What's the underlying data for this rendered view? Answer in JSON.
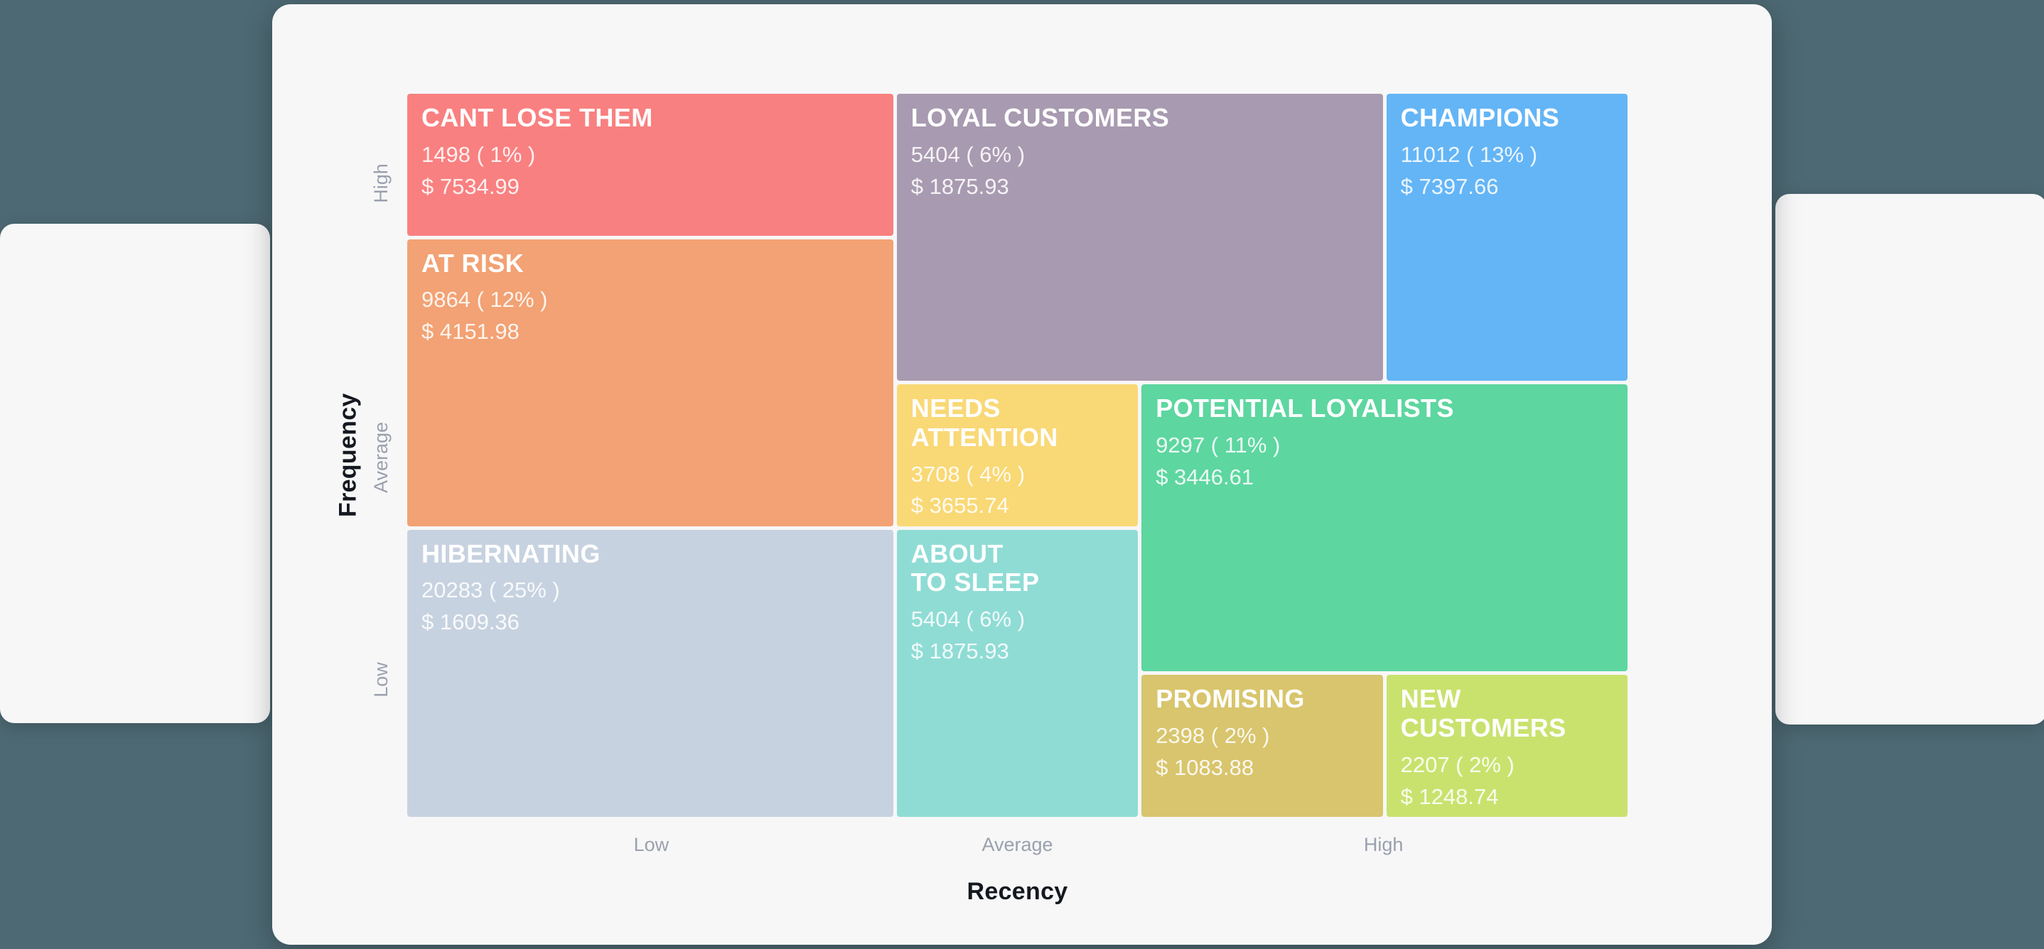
{
  "background_color": "#4d6973",
  "card_color": "#f7f7f8",
  "chart_data": {
    "type": "treemap",
    "subtype": "rfm-segment-grid",
    "title": "",
    "xlabel": "Recency",
    "ylabel": "Frequency",
    "x_ticks": [
      "Low",
      "Average",
      "High"
    ],
    "y_ticks": [
      "High",
      "Average",
      "Low"
    ],
    "grid": "5x5 units, gaps between segments, no axes lines",
    "segments": [
      {
        "name": "CANT LOSE THEM",
        "display_name": "CANT LOSE THEM",
        "customers": 1498,
        "percent": 1,
        "monetary": 7534.99,
        "count_label": "1498 ( 1% )",
        "monetary_label": "$ 7534.99",
        "color": "#f98080",
        "recency": "Low",
        "frequency": "High"
      },
      {
        "name": "LOYAL CUSTOMERS",
        "display_name": "LOYAL CUSTOMERS",
        "customers": 5404,
        "percent": 6,
        "monetary": 1875.93,
        "count_label": "5404 ( 6% )",
        "monetary_label": "$ 1875.93",
        "color": "#a89ab0",
        "recency": "Average",
        "frequency": "High"
      },
      {
        "name": "CHAMPIONS",
        "display_name": "CHAMPIONS",
        "customers": 11012,
        "percent": 13,
        "monetary": 7397.66,
        "count_label": "11012 ( 13% )",
        "monetary_label": "$ 7397.66",
        "color": "#64b5f6",
        "recency": "High",
        "frequency": "High"
      },
      {
        "name": "AT RISK",
        "display_name": "AT RISK",
        "customers": 9864,
        "percent": 12,
        "monetary": 4151.98,
        "count_label": "9864 ( 12% )",
        "monetary_label": "$ 4151.98",
        "color": "#f2a274",
        "recency": "Low",
        "frequency": "Average"
      },
      {
        "name": "NEEDS ATTENTION",
        "display_name": "NEEDS\nATTENTION",
        "customers": 3708,
        "percent": 4,
        "monetary": 3655.74,
        "count_label": "3708 ( 4% )",
        "monetary_label": "$ 3655.74",
        "color": "#f9d876",
        "recency": "Average",
        "frequency": "Average"
      },
      {
        "name": "POTENTIAL LOYALISTS",
        "display_name": "POTENTIAL LOYALISTS",
        "customers": 9297,
        "percent": 11,
        "monetary": 3446.61,
        "count_label": "9297 ( 11% )",
        "monetary_label": "$ 3446.61",
        "color": "#5dd6a0",
        "recency": "High",
        "frequency": "Average"
      },
      {
        "name": "HIBERNATING",
        "display_name": "HIBERNATING",
        "customers": 20283,
        "percent": 25,
        "monetary": 1609.36,
        "count_label": "20283 ( 25% )",
        "monetary_label": "$ 1609.36",
        "color": "#c7d2e0",
        "recency": "Low",
        "frequency": "Low"
      },
      {
        "name": "ABOUT TO SLEEP",
        "display_name": "ABOUT\nTO SLEEP",
        "customers": 5404,
        "percent": 6,
        "monetary": 1875.93,
        "count_label": "5404 ( 6% )",
        "monetary_label": "$ 1875.93",
        "color": "#8fdcd5",
        "recency": "Average",
        "frequency": "Low"
      },
      {
        "name": "PROMISING",
        "display_name": "PROMISING",
        "customers": 2398,
        "percent": 2,
        "monetary": 1083.88,
        "count_label": "2398 ( 2% )",
        "monetary_label": "$ 1083.88",
        "color": "#d8c56d",
        "recency": "High",
        "frequency": "Low"
      },
      {
        "name": "NEW CUSTOMERS",
        "display_name": "NEW\nCUSTOMERS",
        "customers": 2207,
        "percent": 2,
        "monetary": 1248.74,
        "count_label": "2207 ( 2% )",
        "monetary_label": "$ 1248.74",
        "color": "#c9e26e",
        "recency": "High",
        "frequency": "Low"
      }
    ]
  }
}
